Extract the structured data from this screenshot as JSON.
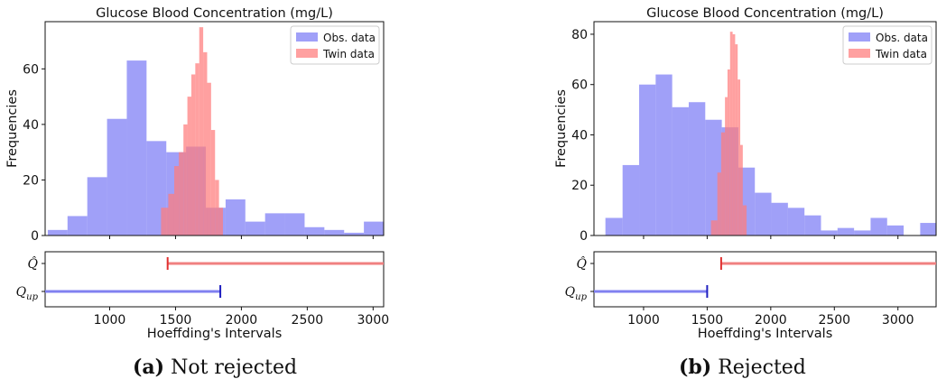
{
  "chart_data": [
    {
      "panel": "a",
      "type": "bar",
      "title": "Glucose Blood Concentration (mg/L)",
      "xlabel": "Hoeffding's Intervals",
      "ylabel": "Frequencies",
      "xlim": [
        510,
        3080
      ],
      "ylim": [
        0,
        77
      ],
      "xticks": [
        1000,
        1500,
        2000,
        2500,
        3000
      ],
      "yticks": [
        0,
        20,
        40,
        60
      ],
      "legend": {
        "placement": "top-right",
        "entries": [
          "Obs. data",
          "Twin data"
        ]
      },
      "series": [
        {
          "name": "Obs. data",
          "color": "#7b7bf5",
          "bin_edges": [
            530,
            680,
            830,
            980,
            1130,
            1280,
            1430,
            1580,
            1730,
            1880,
            2030,
            2180,
            2330,
            2480,
            2630,
            2780,
            2930,
            3080
          ],
          "values": [
            2,
            7,
            21,
            42,
            63,
            34,
            30,
            32,
            10,
            13,
            5,
            8,
            8,
            3,
            2,
            1,
            5
          ]
        },
        {
          "name": "Twin data",
          "color": "#ff7b7b",
          "bin_edges": [
            1390,
            1445,
            1490,
            1525,
            1560,
            1590,
            1620,
            1650,
            1680,
            1710,
            1740,
            1770,
            1800,
            1830,
            1860
          ],
          "values": [
            10,
            15,
            25,
            30,
            40,
            50,
            58,
            62,
            75,
            66,
            55,
            38,
            20,
            10
          ]
        }
      ],
      "intervals": [
        {
          "label": "Q̂",
          "from": 1440,
          "to": 3080,
          "color": "#f08080",
          "edge": "left",
          "edge_color": "#e03030"
        },
        {
          "label": "Q_up",
          "from": 510,
          "to": 1840,
          "color": "#8080f0",
          "edge": "right",
          "edge_color": "#2020c0"
        }
      ]
    },
    {
      "panel": "b",
      "type": "bar",
      "title": "Glucose Blood Concentration (mg/L)",
      "xlabel": "Hoeffding's Intervals",
      "ylabel": "Frequencies",
      "xlim": [
        610,
        3300
      ],
      "ylim": [
        0,
        85
      ],
      "xticks": [
        1000,
        1500,
        2000,
        2500,
        3000
      ],
      "yticks": [
        0,
        20,
        40,
        60,
        80
      ],
      "legend": {
        "placement": "top-right",
        "entries": [
          "Obs. data",
          "Twin data"
        ]
      },
      "series": [
        {
          "name": "Obs. data",
          "color": "#7b7bf5",
          "bin_edges": [
            700,
            835,
            965,
            1095,
            1225,
            1355,
            1485,
            1615,
            1745,
            1875,
            2005,
            2135,
            2265,
            2395,
            2525,
            2655,
            2785,
            2915,
            3045,
            3175,
            3300
          ],
          "values": [
            7,
            28,
            60,
            64,
            51,
            53,
            46,
            43,
            27,
            17,
            13,
            11,
            8,
            2,
            3,
            2,
            7,
            4,
            0,
            5
          ]
        },
        {
          "name": "Twin data",
          "color": "#ff7b7b",
          "bin_edges": [
            1530,
            1580,
            1610,
            1640,
            1660,
            1680,
            1700,
            1720,
            1740,
            1760,
            1780,
            1810
          ],
          "values": [
            6,
            25,
            41,
            55,
            66,
            81,
            80,
            76,
            62,
            36,
            12
          ]
        }
      ],
      "intervals": [
        {
          "label": "Q̂",
          "from": 1610,
          "to": 3300,
          "color": "#f08080",
          "edge": "left",
          "edge_color": "#e03030"
        },
        {
          "label": "Q_up",
          "from": 610,
          "to": 1500,
          "color": "#8080f0",
          "edge": "right",
          "edge_color": "#2020c0"
        }
      ]
    }
  ],
  "captions": [
    {
      "label": "(a)",
      "text": "Not rejected"
    },
    {
      "label": "(b)",
      "text": "Rejected"
    }
  ]
}
